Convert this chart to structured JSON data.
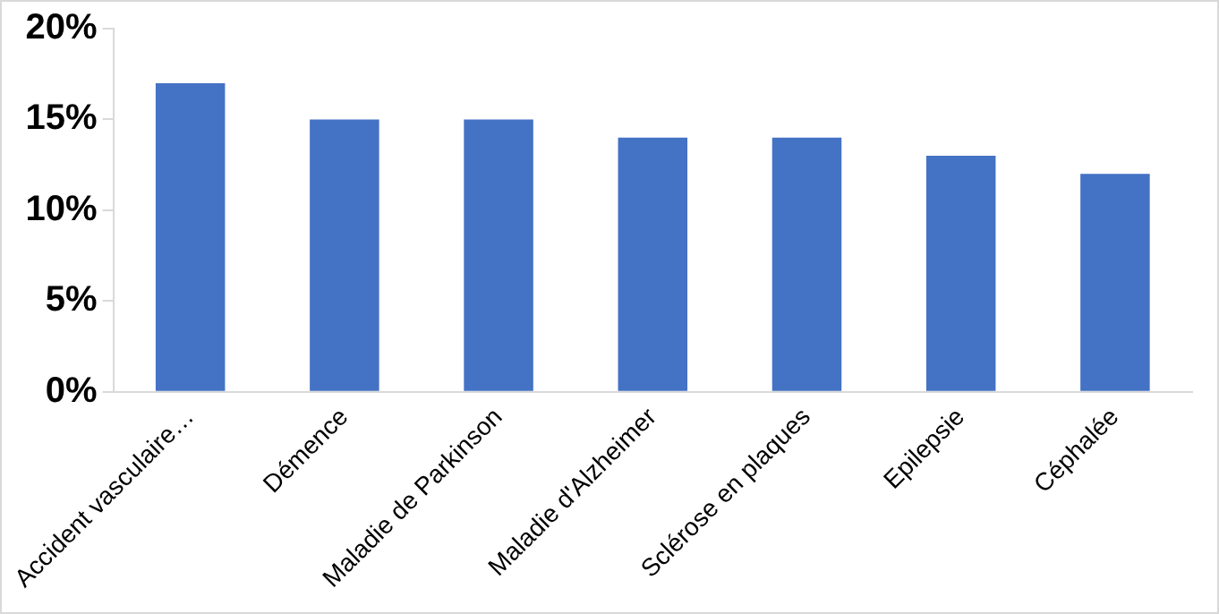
{
  "chart_data": {
    "type": "bar",
    "categories": [
      "Accident vasculaire…",
      "Démence",
      "Maladie de Parkinson",
      "Maladie d'Alzheimer",
      "Sclérose en plaques",
      "Epilepsie",
      "Céphalée"
    ],
    "values": [
      17,
      15,
      15,
      14,
      14,
      13,
      12
    ],
    "color": "#4472c4",
    "ylim": [
      0,
      20
    ],
    "yticks": [
      {
        "value": 0,
        "label": "0%"
      },
      {
        "value": 5,
        "label": "5%"
      },
      {
        "value": 10,
        "label": "10%"
      },
      {
        "value": 15,
        "label": "15%"
      },
      {
        "value": 20,
        "label": "20%"
      }
    ],
    "grid": false,
    "legend": false
  }
}
